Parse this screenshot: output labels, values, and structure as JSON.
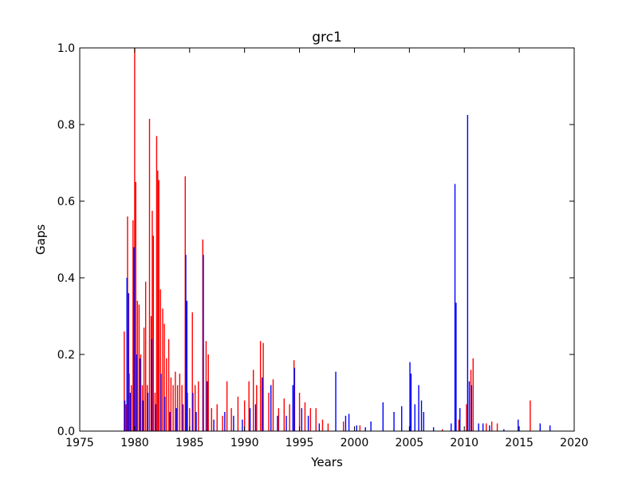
{
  "chart_data": {
    "type": "bar",
    "title": "grc1",
    "xlabel": "Years",
    "ylabel": "Gaps",
    "xlim": [
      1975,
      2020
    ],
    "ylim": [
      0,
      1.0
    ],
    "xticks": [
      1975,
      1980,
      1985,
      1990,
      1995,
      2000,
      2005,
      2010,
      2015,
      2020
    ],
    "xtick_labels": [
      "1975",
      "1980",
      "1985",
      "1990",
      "1995",
      "2000",
      "2005",
      "2010",
      "2015",
      "2020"
    ],
    "yticks": [
      0.0,
      0.2,
      0.4,
      0.6,
      0.8,
      1.0
    ],
    "ytick_labels": [
      "0.0",
      "0.2",
      "0.4",
      "0.6",
      "0.8",
      "1.0"
    ],
    "grid": false,
    "legend": "none",
    "series": [
      {
        "color": "#ff0000",
        "points": [
          [
            1979.05,
            0.26
          ],
          [
            1979.2,
            0.07
          ],
          [
            1979.35,
            0.56
          ],
          [
            1979.5,
            0.15
          ],
          [
            1979.7,
            0.12
          ],
          [
            1979.85,
            0.55
          ],
          [
            1980.0,
            1.0
          ],
          [
            1980.1,
            0.65
          ],
          [
            1980.25,
            0.34
          ],
          [
            1980.4,
            0.33
          ],
          [
            1980.55,
            0.2
          ],
          [
            1980.7,
            0.12
          ],
          [
            1980.85,
            0.27
          ],
          [
            1981.0,
            0.39
          ],
          [
            1981.15,
            0.12
          ],
          [
            1981.35,
            0.815
          ],
          [
            1981.5,
            0.3
          ],
          [
            1981.6,
            0.575
          ],
          [
            1981.7,
            0.51
          ],
          [
            1981.85,
            0.1
          ],
          [
            1982.0,
            0.77
          ],
          [
            1982.1,
            0.68
          ],
          [
            1982.2,
            0.655
          ],
          [
            1982.35,
            0.37
          ],
          [
            1982.55,
            0.32
          ],
          [
            1982.7,
            0.28
          ],
          [
            1982.9,
            0.19
          ],
          [
            1983.1,
            0.24
          ],
          [
            1983.3,
            0.14
          ],
          [
            1983.5,
            0.12
          ],
          [
            1983.7,
            0.155
          ],
          [
            1983.9,
            0.12
          ],
          [
            1984.1,
            0.15
          ],
          [
            1984.3,
            0.12
          ],
          [
            1984.6,
            0.665
          ],
          [
            1984.8,
            0.1
          ],
          [
            1985.0,
            0.06
          ],
          [
            1985.25,
            0.31
          ],
          [
            1985.5,
            0.12
          ],
          [
            1985.8,
            0.13
          ],
          [
            1986.2,
            0.5
          ],
          [
            1986.5,
            0.235
          ],
          [
            1986.7,
            0.2
          ],
          [
            1987.0,
            0.06
          ],
          [
            1987.5,
            0.07
          ],
          [
            1988.0,
            0.04
          ],
          [
            1988.4,
            0.13
          ],
          [
            1988.8,
            0.06
          ],
          [
            1989.4,
            0.09
          ],
          [
            1990.0,
            0.08
          ],
          [
            1990.4,
            0.13
          ],
          [
            1990.8,
            0.16
          ],
          [
            1991.1,
            0.12
          ],
          [
            1991.45,
            0.235
          ],
          [
            1991.7,
            0.23
          ],
          [
            1992.2,
            0.1
          ],
          [
            1992.6,
            0.135
          ],
          [
            1993.1,
            0.06
          ],
          [
            1993.6,
            0.085
          ],
          [
            1994.1,
            0.07
          ],
          [
            1994.5,
            0.185
          ],
          [
            1995.0,
            0.1
          ],
          [
            1995.5,
            0.075
          ],
          [
            1996.0,
            0.06
          ],
          [
            1996.5,
            0.06
          ],
          [
            1997.1,
            0.03
          ],
          [
            1997.6,
            0.02
          ],
          [
            1999.0,
            0.025
          ],
          [
            2000.5,
            0.015
          ],
          [
            2008.0,
            0.005
          ],
          [
            2009.5,
            0.03
          ],
          [
            2010.2,
            0.07
          ],
          [
            2010.6,
            0.16
          ],
          [
            2010.8,
            0.19
          ],
          [
            2012.0,
            0.02
          ],
          [
            2012.5,
            0.025
          ],
          [
            2013.0,
            0.02
          ],
          [
            2016.0,
            0.08
          ]
        ]
      },
      {
        "color": "#0000ff",
        "points": [
          [
            1979.1,
            0.08
          ],
          [
            1979.3,
            0.4
          ],
          [
            1979.45,
            0.36
          ],
          [
            1979.6,
            0.1
          ],
          [
            1979.95,
            0.48
          ],
          [
            1980.15,
            0.2
          ],
          [
            1980.5,
            0.19
          ],
          [
            1980.75,
            0.08
          ],
          [
            1981.2,
            0.1
          ],
          [
            1981.55,
            0.24
          ],
          [
            1981.9,
            0.07
          ],
          [
            1982.4,
            0.15
          ],
          [
            1982.75,
            0.09
          ],
          [
            1983.2,
            0.05
          ],
          [
            1983.8,
            0.06
          ],
          [
            1984.4,
            0.07
          ],
          [
            1984.65,
            0.46
          ],
          [
            1984.75,
            0.34
          ],
          [
            1985.3,
            0.1
          ],
          [
            1985.6,
            0.05
          ],
          [
            1986.25,
            0.46
          ],
          [
            1986.6,
            0.13
          ],
          [
            1987.2,
            0.03
          ],
          [
            1988.2,
            0.05
          ],
          [
            1989.0,
            0.04
          ],
          [
            1989.8,
            0.03
          ],
          [
            1990.5,
            0.06
          ],
          [
            1991.0,
            0.07
          ],
          [
            1991.6,
            0.14
          ],
          [
            1992.4,
            0.12
          ],
          [
            1993.0,
            0.04
          ],
          [
            1993.8,
            0.04
          ],
          [
            1994.4,
            0.12
          ],
          [
            1994.55,
            0.165
          ],
          [
            1995.2,
            0.06
          ],
          [
            1995.8,
            0.04
          ],
          [
            1996.8,
            0.02
          ],
          [
            1998.3,
            0.155
          ],
          [
            1999.2,
            0.04
          ],
          [
            1999.5,
            0.045
          ],
          [
            2000.2,
            0.015
          ],
          [
            2001.0,
            0.01
          ],
          [
            2001.5,
            0.025
          ],
          [
            2002.6,
            0.075
          ],
          [
            2003.6,
            0.05
          ],
          [
            2004.3,
            0.065
          ],
          [
            2005.05,
            0.18
          ],
          [
            2005.15,
            0.15
          ],
          [
            2005.5,
            0.07
          ],
          [
            2005.85,
            0.12
          ],
          [
            2006.1,
            0.08
          ],
          [
            2006.3,
            0.05
          ],
          [
            2007.2,
            0.01
          ],
          [
            2008.8,
            0.02
          ],
          [
            2009.15,
            0.645
          ],
          [
            2009.25,
            0.335
          ],
          [
            2009.6,
            0.06
          ],
          [
            2010.3,
            0.825
          ],
          [
            2010.45,
            0.13
          ],
          [
            2010.65,
            0.12
          ],
          [
            2011.3,
            0.02
          ],
          [
            2011.7,
            0.02
          ],
          [
            2012.3,
            0.015
          ],
          [
            2013.6,
            0.005
          ],
          [
            2014.9,
            0.03
          ],
          [
            2016.9,
            0.02
          ],
          [
            2017.8,
            0.015
          ]
        ]
      }
    ]
  }
}
